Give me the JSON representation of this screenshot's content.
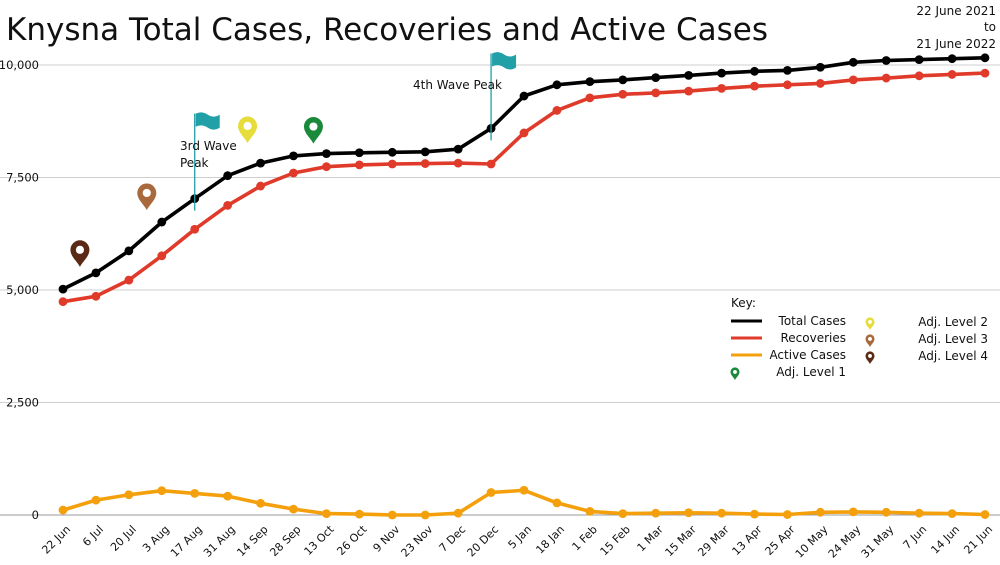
{
  "header": {
    "title": "Knysna Total Cases, Recoveries and Active Cases",
    "date_line1": "22 June 2021",
    "date_line2": "to",
    "date_line3": "21 June 2022"
  },
  "chart_data": {
    "type": "line",
    "title": "Knysna Total Cases, Recoveries and Active Cases",
    "xlabel": "",
    "ylabel": "",
    "ylim": [
      0,
      10000
    ],
    "yticks": [
      0,
      2500,
      5000,
      7500,
      10000
    ],
    "ytick_labels": [
      "0",
      "2,500",
      "5,000",
      "7,500",
      "10,000"
    ],
    "grid": true,
    "categories": [
      "22 Jun",
      "6 Jul",
      "20 Jul",
      "3 Aug",
      "17 Aug",
      "31 Aug",
      "14 Sep",
      "28 Sep",
      "13 Oct",
      "26 Oct",
      "9 Nov",
      "23 Nov",
      "7 Dec",
      "20 Dec",
      "5 Jan",
      "18 Jan",
      "1 Feb",
      "15 Feb",
      "1 Mar",
      "15 Mar",
      "29 Mar",
      "13 Apr",
      "25 Apr",
      "10 May",
      "24 May",
      "31 May",
      "7 Jun",
      "14 Jun",
      "21 Jun"
    ],
    "series": [
      {
        "name": "Total Cases",
        "color": "#000000",
        "values": [
          5020,
          5380,
          5870,
          6510,
          7030,
          7540,
          7820,
          7980,
          8030,
          8050,
          8060,
          8070,
          8130,
          8590,
          9310,
          9560,
          9630,
          9670,
          9720,
          9770,
          9820,
          9860,
          9880,
          9950,
          10060,
          10100,
          10120,
          10140,
          10160
        ]
      },
      {
        "name": "Recoveries",
        "color": "#e03a2a",
        "values": [
          4740,
          4860,
          5220,
          5760,
          6350,
          6880,
          7310,
          7600,
          7740,
          7780,
          7800,
          7810,
          7820,
          7800,
          8490,
          8990,
          9270,
          9350,
          9380,
          9420,
          9480,
          9530,
          9560,
          9590,
          9670,
          9710,
          9760,
          9790,
          9820
        ]
      },
      {
        "name": "Active Cases",
        "color": "#f4a00d",
        "values": [
          110,
          330,
          450,
          540,
          480,
          420,
          260,
          130,
          30,
          20,
          0,
          0,
          40,
          500,
          550,
          270,
          80,
          30,
          40,
          50,
          40,
          20,
          10,
          60,
          70,
          60,
          40,
          30,
          10
        ]
      }
    ],
    "annotations": {
      "wave3_line1": "3rd Wave",
      "wave3_line2": "Peak",
      "wave4": "4th Wave Peak"
    },
    "legend": {
      "title": "Key:",
      "placement": "right",
      "lines": [
        "Total Cases",
        "Recoveries",
        "Active Cases"
      ],
      "markers": [
        "Adj. Level 1",
        "Adj. Level 2",
        "Adj. Level 3",
        "Adj. Level 4"
      ]
    },
    "markers": [
      {
        "name": "Adj. Level 4",
        "x": "6 Jul",
        "color": "#5a2a16"
      },
      {
        "name": "Adj. Level 3",
        "x": "3 Aug",
        "color": "#a86a3c"
      },
      {
        "name": "Adj. Level 2",
        "x": "14 Sep",
        "color": "#e6dc3a"
      },
      {
        "name": "Adj. Level 1",
        "x": "13 Oct",
        "color": "#1a8a3a"
      }
    ],
    "flags": [
      {
        "x": "17 Aug",
        "color": "#21a0a8"
      },
      {
        "x": "20 Dec",
        "color": "#21a0a8"
      }
    ]
  }
}
